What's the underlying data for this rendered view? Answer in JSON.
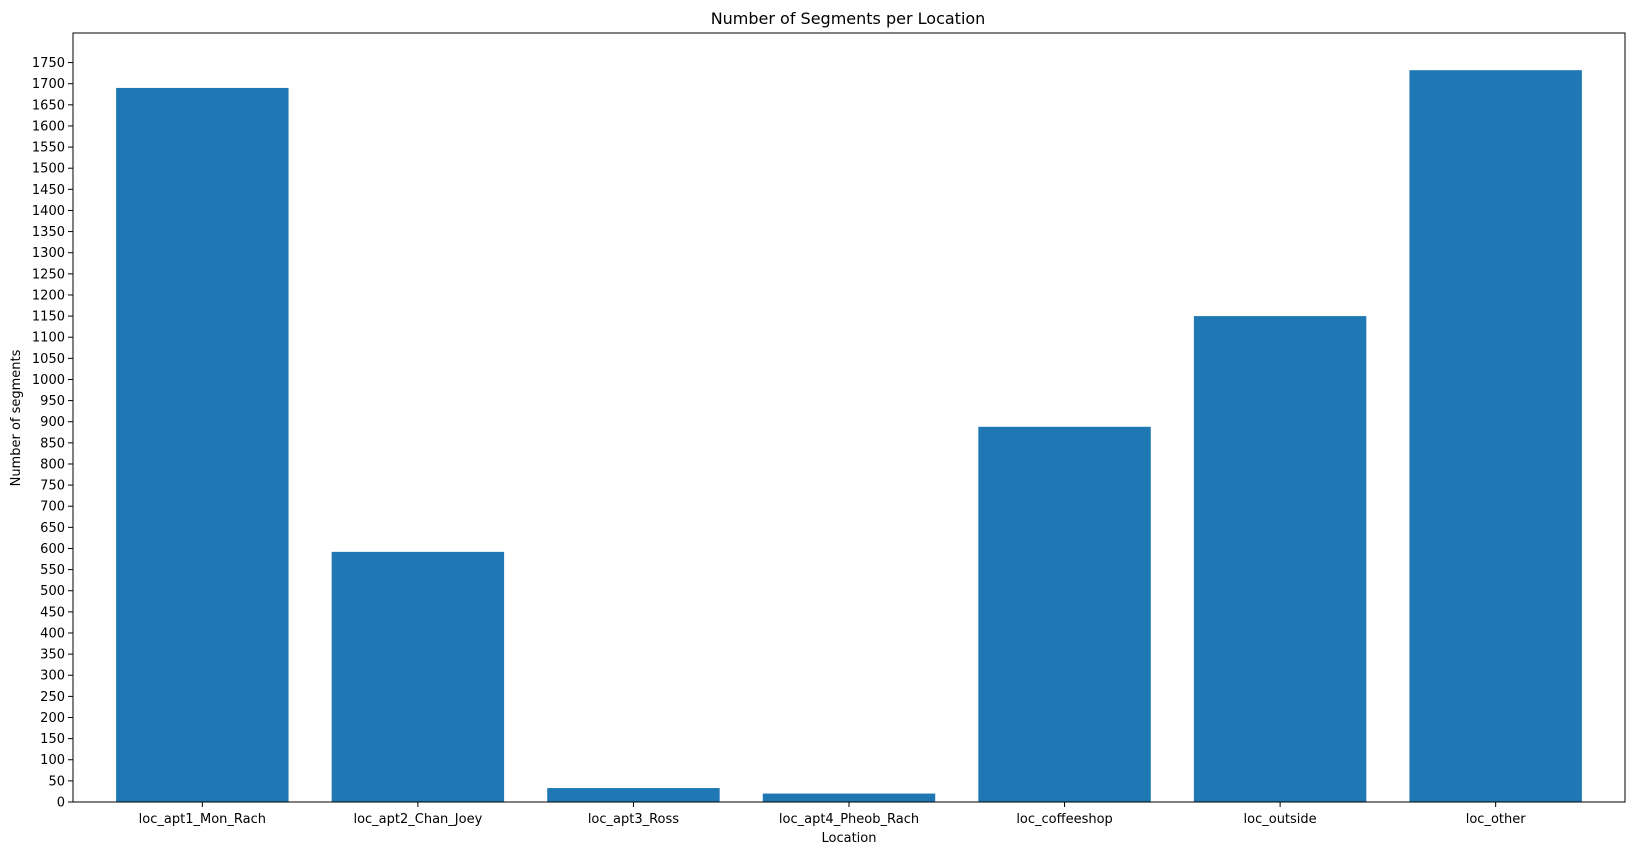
{
  "chart_data": {
    "type": "bar",
    "title": "Number of Segments per Location",
    "xlabel": "Location",
    "ylabel": "Number of segments",
    "categories": [
      "loc_apt1_Mon_Rach",
      "loc_apt2_Chan_Joey",
      "loc_apt3_Ross",
      "loc_apt4_Pheob_Rach",
      "loc_coffeeshop",
      "loc_outside",
      "loc_other"
    ],
    "values": [
      1690,
      592,
      33,
      20,
      888,
      1150,
      1732
    ],
    "ylim": [
      0,
      1820
    ],
    "yticks": [
      0,
      50,
      100,
      150,
      200,
      250,
      300,
      350,
      400,
      450,
      500,
      550,
      600,
      650,
      700,
      750,
      800,
      850,
      900,
      950,
      1000,
      1050,
      1100,
      1150,
      1200,
      1250,
      1300,
      1350,
      1400,
      1450,
      1500,
      1550,
      1600,
      1650,
      1700,
      1750
    ],
    "grid": false,
    "bar_color": "#1f77b4"
  }
}
